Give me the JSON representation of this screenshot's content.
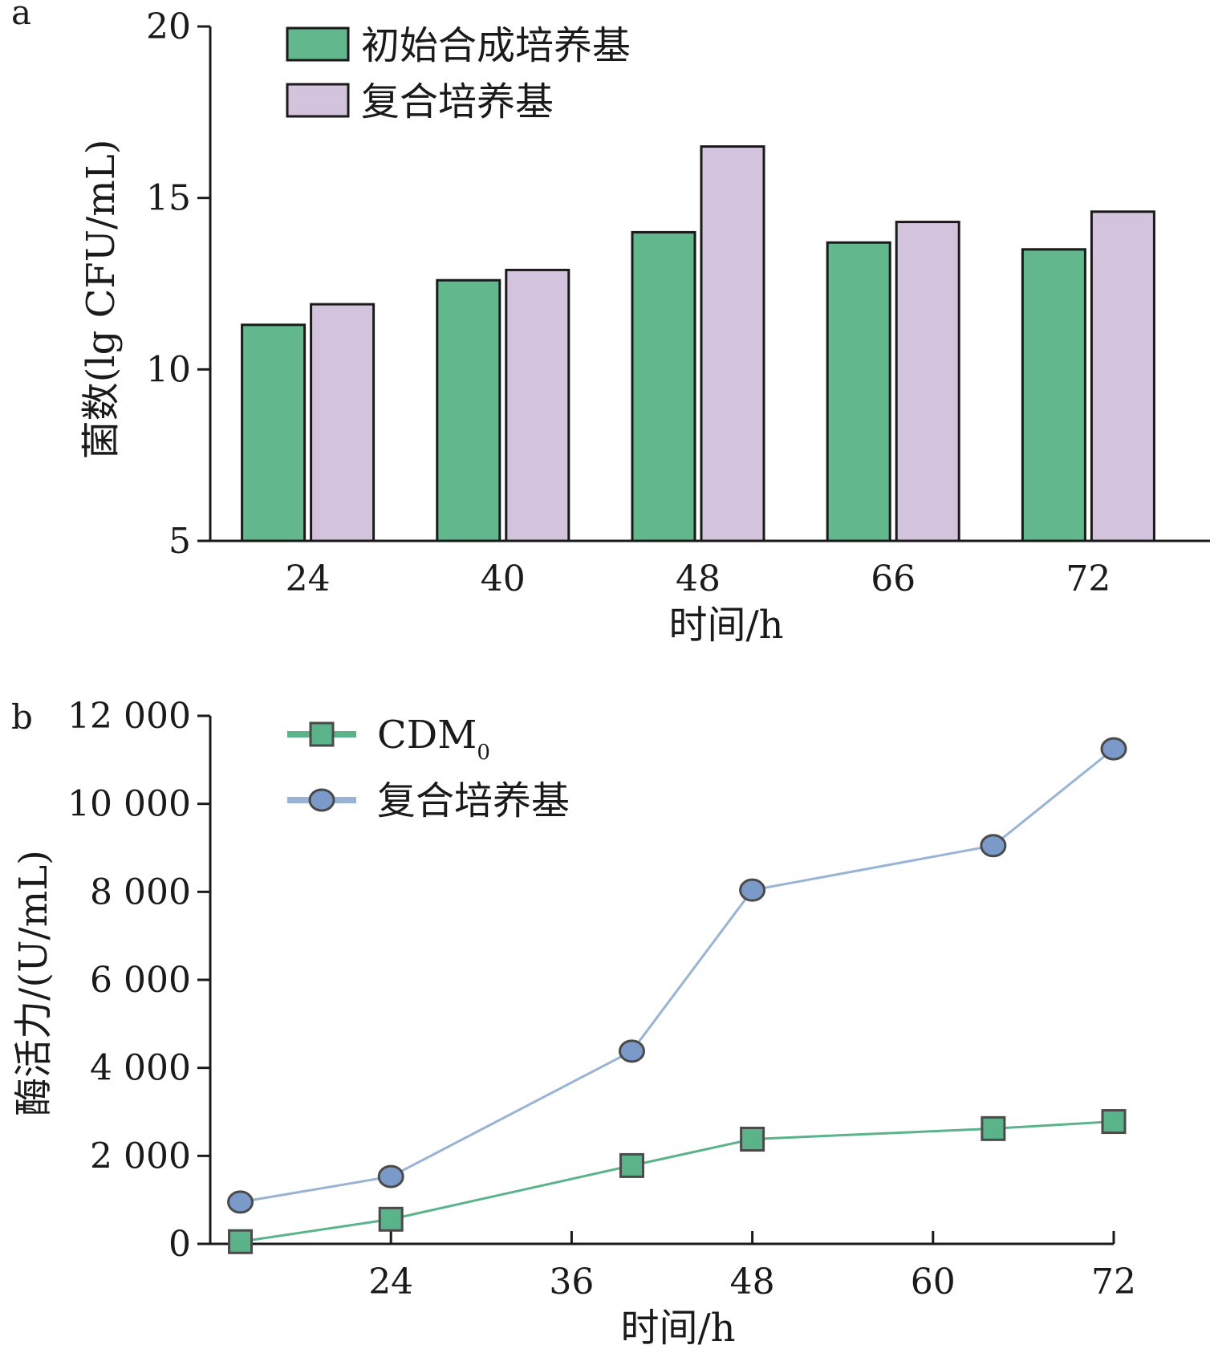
{
  "chart_data": [
    {
      "type": "bar",
      "panel_label": "a",
      "categories": [
        "24",
        "40",
        "48",
        "66",
        "72"
      ],
      "series": [
        {
          "name": "初始合成培养基",
          "color": "#62b78d",
          "values": [
            11.3,
            12.6,
            14.0,
            13.7,
            13.5
          ]
        },
        {
          "name": "复合培养基",
          "color": "#d3c3dd",
          "values": [
            11.9,
            12.9,
            16.5,
            14.3,
            14.6
          ]
        }
      ],
      "xlabel": "时间/h",
      "ylabel": "菌数(lg CFU/mL)",
      "ylim": [
        5,
        20
      ],
      "yticks": [
        5,
        10,
        15,
        20
      ],
      "ytick_labels": [
        "5",
        "10",
        "15",
        "20"
      ],
      "grid": false,
      "legend": "top-left"
    },
    {
      "type": "line",
      "panel_label": "b",
      "series": [
        {
          "name": "CDM",
          "name_subscript": "0",
          "color": "#5bb38a",
          "marker": "square",
          "x": [
            14,
            24,
            40,
            48,
            64,
            72
          ],
          "y": [
            50,
            560,
            1780,
            2380,
            2620,
            2780
          ]
        },
        {
          "name": "复合培养基",
          "color": "#99b3d5",
          "marker": "circle",
          "x": [
            14,
            24,
            40,
            48,
            64,
            72
          ],
          "y": [
            950,
            1530,
            4380,
            8040,
            9050,
            11250
          ]
        }
      ],
      "xlabel": "时间/h",
      "ylabel": "酶活力/(U/mL)",
      "xlim": [
        12,
        72
      ],
      "xticks": [
        24,
        36,
        48,
        60,
        72
      ],
      "xtick_labels": [
        "24",
        "36",
        "48",
        "60",
        "72"
      ],
      "ylim": [
        0,
        12000
      ],
      "yticks": [
        0,
        2000,
        4000,
        6000,
        8000,
        10000,
        12000
      ],
      "ytick_labels": [
        "0",
        "2 000",
        "4 000",
        "6 000",
        "8 000",
        "10 000",
        "12 000"
      ],
      "grid": false,
      "legend": "top-left"
    }
  ]
}
